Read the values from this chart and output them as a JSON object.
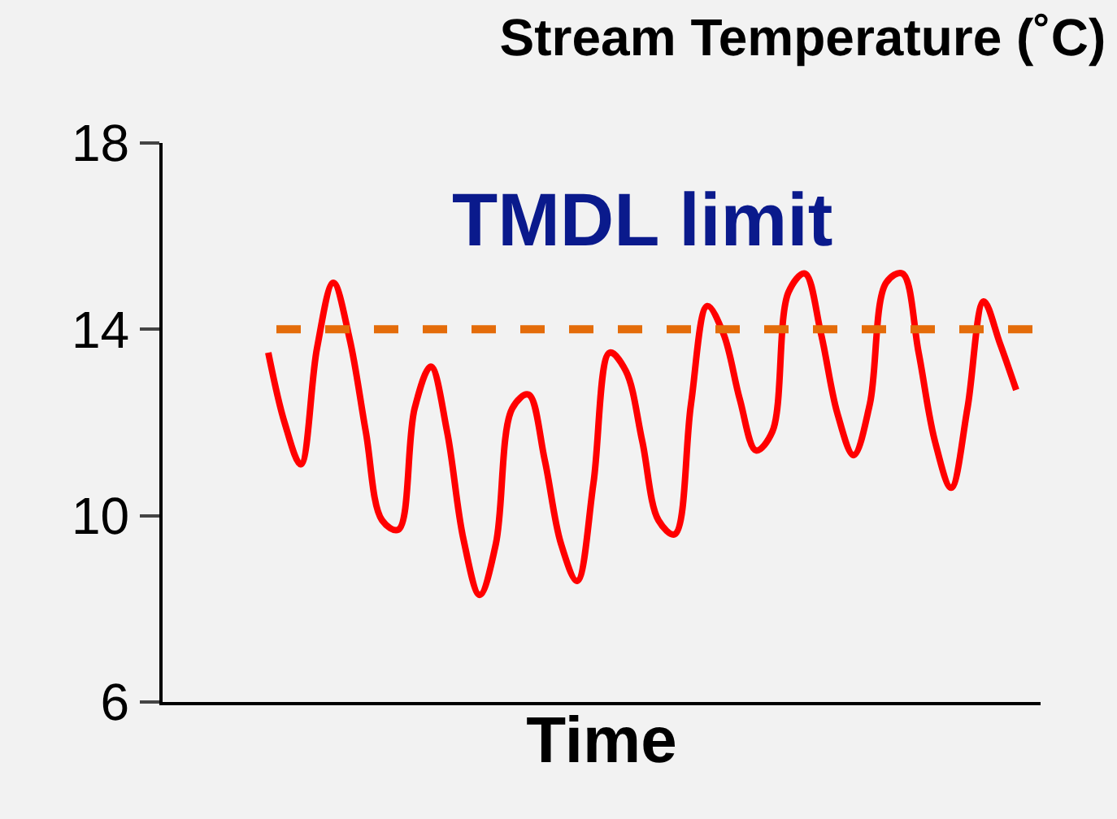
{
  "chart_data": {
    "type": "line",
    "title": "Stream Temperature (˚C)",
    "xlabel": "Time",
    "categories": [
      null,
      null,
      null,
      null,
      null,
      null,
      null,
      null,
      null,
      null,
      null,
      null,
      null,
      null,
      null,
      null,
      null,
      null,
      null,
      null,
      null,
      null,
      null,
      null,
      null,
      null,
      null,
      null,
      null,
      null,
      null,
      null,
      null,
      null,
      null,
      null,
      null,
      null,
      null,
      null,
      null,
      null,
      null,
      null,
      null,
      null,
      null
    ],
    "series": [
      {
        "color": "#ff0000",
        "values": [
          13.5,
          12.0,
          11.1,
          13.6,
          15.0,
          13.8,
          11.8,
          9.9,
          9.7,
          12.3,
          13.2,
          11.8,
          9.5,
          8.3,
          9.4,
          12.3,
          12.6,
          11.2,
          9.4,
          8.6,
          10.7,
          13.5,
          13.1,
          11.6,
          9.9,
          9.6,
          12.4,
          14.5,
          13.9,
          12.5,
          11.4,
          11.8,
          14.8,
          15.2,
          13.9,
          12.2,
          11.3,
          12.4,
          15.0,
          15.2,
          13.5,
          11.6,
          10.6,
          12.3,
          14.6,
          13.7,
          12.7
        ]
      }
    ],
    "ylim": [
      6,
      18
    ],
    "yticks": [
      6,
      10,
      14,
      18
    ],
    "grid": false,
    "marker": "none",
    "line_style": "solid",
    "tick_labels": "y",
    "ref_lines": [
      {
        "axis": "y",
        "value": 14,
        "label": "TMDL limit",
        "color": "#e46c0a",
        "line_style": "dashed"
      }
    ]
  }
}
